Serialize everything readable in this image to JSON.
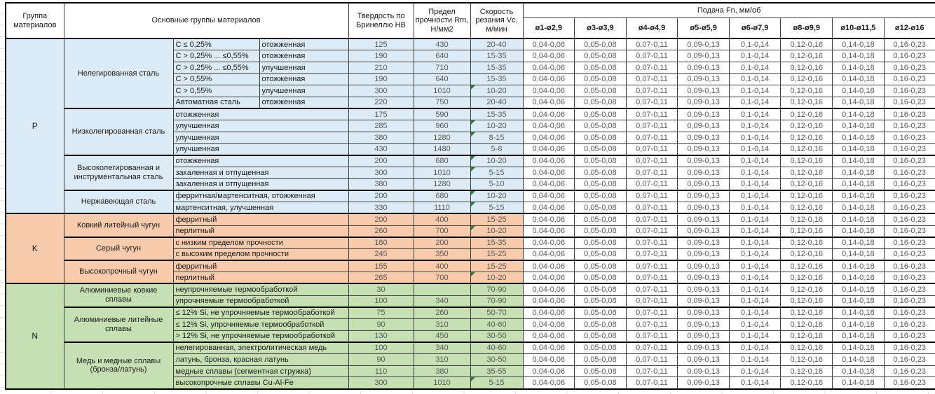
{
  "header": {
    "col_group": "Группа материалов",
    "col_main": "Основные группы материалов",
    "col_hb": "Твердость по Бринеллю HB",
    "col_rm": "Предел прочности Rm, Н/мм2",
    "col_vc": "Скорость резания Vc, м/мин",
    "col_feed": "Подача Fn, мм/об",
    "diameters": [
      "ø1-ø2,9",
      "ø3-ø3,9",
      "ø4-ø4,9",
      "ø5-ø5,9",
      "ø6-ø7,9",
      "ø8-ø9,9",
      "ø10-ø11,5",
      "ø12-ø16"
    ]
  },
  "feeds_per_row": [
    "0,04-0,06",
    "0,05-0,08",
    "0,07-0,11",
    "0,09-0,13",
    "0,1-0,14",
    "0,12-0,16",
    "0,14-0,18",
    "0,16-0,23"
  ],
  "colors": {
    "p": "#DDEBF7",
    "k": "#F8CBAD",
    "n": "#C6E0B4",
    "marker": "#2E7D32"
  },
  "groups": [
    {
      "code": "P",
      "color_key": "p",
      "subgroups": [
        {
          "name": "Нелегированная сталь",
          "split": true,
          "rows": [
            {
              "c1": "C ≤ 0,25%",
              "c2": "отожженная",
              "hb": "125",
              "rm": "430",
              "vc": "20-40",
              "marker": false
            },
            {
              "c1": "C > 0,25% ... ≤0,55%",
              "c2": "отожженная",
              "hb": "190",
              "rm": "640",
              "vc": "15-35",
              "marker": false
            },
            {
              "c1": "C > 0,25% ... ≤0,55%",
              "c2": "улучшенная",
              "hb": "210",
              "rm": "710",
              "vc": "15-35",
              "marker": false
            },
            {
              "c1": "C > 0,55%",
              "c2": "отожженная",
              "hb": "190",
              "rm": "640",
              "vc": "15-35",
              "marker": false
            },
            {
              "c1": "C > 0,55%",
              "c2": "улучшенная",
              "hb": "300",
              "rm": "1010",
              "vc": "10-20",
              "marker": true
            },
            {
              "c1": "Автоматная сталь",
              "c2": "отожженная",
              "hb": "220",
              "rm": "750",
              "vc": "20-40",
              "marker": false
            }
          ]
        },
        {
          "name": "Низколегированная сталь",
          "split": false,
          "rows": [
            {
              "c1": "отожженная",
              "hb": "175",
              "rm": "590",
              "vc": "15-35",
              "marker": false
            },
            {
              "c1": "улучшенная",
              "hb": "285",
              "rm": "960",
              "vc": "10-20",
              "marker": true
            },
            {
              "c1": "улучшенная",
              "hb": "380",
              "rm": "1280",
              "vc": "8-15",
              "marker": true
            },
            {
              "c1": "улучшенная",
              "hb": "430",
              "rm": "1480",
              "vc": "5-8",
              "marker": false
            }
          ]
        },
        {
          "name": "Высоколегированная и инструментальная сталь",
          "split": false,
          "rows": [
            {
              "c1": "отожженная",
              "hb": "200",
              "rm": "680",
              "vc": "10-20",
              "marker": true
            },
            {
              "c1": "закаленная и отпущенная",
              "hb": "300",
              "rm": "1010",
              "vc": "5-15",
              "marker": true
            },
            {
              "c1": "закаленная и отпущенная",
              "hb": "380",
              "rm": "1280",
              "vc": "5-10",
              "marker": false
            }
          ]
        },
        {
          "name": "Нержавеющая сталь",
          "split": false,
          "rows": [
            {
              "c1": "ферритная/мартенситная, отожженная",
              "hb": "200",
              "rm": "680",
              "vc": "10-20",
              "marker": true
            },
            {
              "c1": "мартенситная, улучшенная",
              "hb": "330",
              "rm": "1110",
              "vc": "5-15",
              "marker": true
            }
          ]
        }
      ]
    },
    {
      "code": "K",
      "color_key": "k",
      "subgroups": [
        {
          "name": "Ковкий литейный чугун",
          "split": false,
          "rows": [
            {
              "c1": "ферритный",
              "hb": "200",
              "rm": "400",
              "vc": "15-25",
              "marker": false
            },
            {
              "c1": "перлитный",
              "hb": "260",
              "rm": "700",
              "vc": "10-20",
              "marker": true
            }
          ]
        },
        {
          "name": "Серый чугун",
          "split": false,
          "rows": [
            {
              "c1": "с низким пределом прочности",
              "hb": "180",
              "rm": "200",
              "vc": "15-35",
              "marker": false
            },
            {
              "c1": "с высоким пределом прочности",
              "hb": "245",
              "rm": "350",
              "vc": "15-25",
              "marker": false
            }
          ]
        },
        {
          "name": "Высокопрочный чугун",
          "split": false,
          "rows": [
            {
              "c1": "ферритный",
              "hb": "155",
              "rm": "400",
              "vc": "15-25",
              "marker": false
            },
            {
              "c1": "перлитный",
              "hb": "265",
              "rm": "700",
              "vc": "10-20",
              "marker": true
            }
          ]
        }
      ]
    },
    {
      "code": "N",
      "color_key": "n",
      "subgroups": [
        {
          "name": "Алюминиевые ковкие сплавы",
          "split": false,
          "rows": [
            {
              "c1": "неупрочняемые термообработкой",
              "hb": "30",
              "rm": "",
              "vc": "70-90",
              "marker": false
            },
            {
              "c1": "упрочняемые термообработкой",
              "hb": "100",
              "rm": "340",
              "vc": "70-90",
              "marker": false
            }
          ]
        },
        {
          "name": "Алюминиевые литейные сплавы",
          "split": false,
          "rows": [
            {
              "c1": "≤ 12% Si, не упрочняемые термообработкой",
              "hb": "75",
              "rm": "260",
              "vc": "50-70",
              "marker": false
            },
            {
              "c1": "≤ 12% Si, упрочняемые термообработкой",
              "hb": "90",
              "rm": "310",
              "vc": "40-60",
              "marker": false
            },
            {
              "c1": "> 12% Si, не упрочняемые термообработкой",
              "hb": "130",
              "rm": "450",
              "vc": "30-50",
              "marker": false
            }
          ]
        },
        {
          "name": "Медь и медные сплавы (бронза/латунь)",
          "split": false,
          "rows": [
            {
              "c1": "нелегированная, электролитическая медь",
              "hb": "100",
              "rm": "340",
              "vc": "40-60",
              "marker": false
            },
            {
              "c1": "латунь, бронза, красная латунь",
              "hb": "90",
              "rm": "310",
              "vc": "30-50",
              "marker": false
            },
            {
              "c1": "медные сплавы (сегментная стружка)",
              "hb": "110",
              "rm": "380",
              "vc": "35-55",
              "marker": false
            },
            {
              "c1": "высокопрочные сплавы Cu-Al-Fe",
              "hb": "300",
              "rm": "1010",
              "vc": "5-15",
              "marker": true
            }
          ]
        }
      ]
    }
  ]
}
